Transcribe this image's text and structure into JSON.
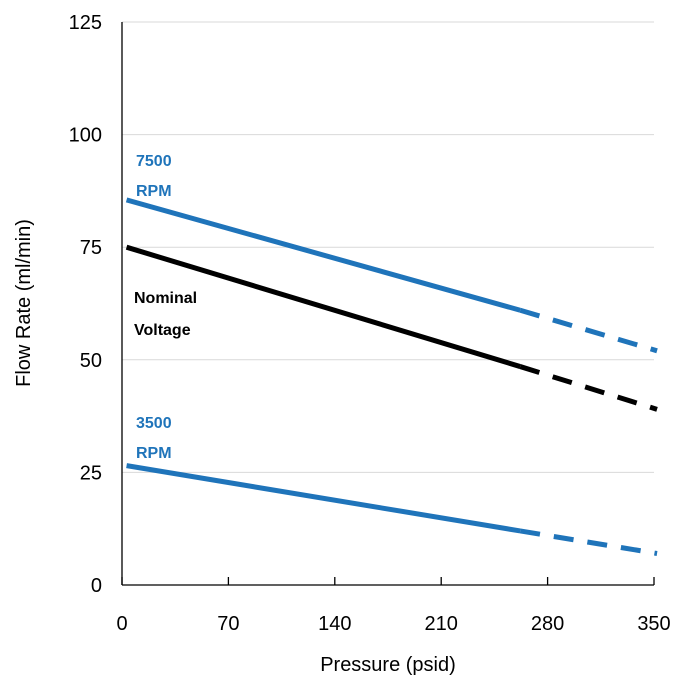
{
  "chart_data": {
    "type": "line",
    "title": "",
    "xlabel": "Pressure (psid)",
    "ylabel": "Flow Rate (ml/min)",
    "xlim": [
      0,
      350
    ],
    "ylim": [
      0,
      125
    ],
    "x_ticks": [
      0,
      70,
      140,
      210,
      280,
      350
    ],
    "y_ticks": [
      0,
      25,
      50,
      75,
      100,
      125
    ],
    "grid": "horizontal",
    "legend": "none",
    "series": [
      {
        "key": "rpm7500",
        "label_lines": [
          "7500",
          "RPM"
        ],
        "color": "#1F74BA",
        "solid": {
          "x": [
            3,
            262
          ],
          "y": [
            85.5,
            61
          ]
        },
        "dashed": {
          "x": [
            262,
            352
          ],
          "y": [
            61,
            52
          ]
        }
      },
      {
        "key": "nominal",
        "label_lines": [
          "Nominal",
          "Voltage"
        ],
        "color": "#000000",
        "solid": {
          "x": [
            3,
            262
          ],
          "y": [
            75,
            48.5
          ]
        },
        "dashed": {
          "x": [
            262,
            352
          ],
          "y": [
            48.5,
            39
          ]
        }
      },
      {
        "key": "rpm3500",
        "label_lines": [
          "3500",
          "RPM"
        ],
        "color": "#1F74BA",
        "solid": {
          "x": [
            3,
            262
          ],
          "y": [
            26.5,
            12
          ]
        },
        "dashed": {
          "x": [
            262,
            352
          ],
          "y": [
            12,
            7
          ]
        }
      }
    ]
  }
}
